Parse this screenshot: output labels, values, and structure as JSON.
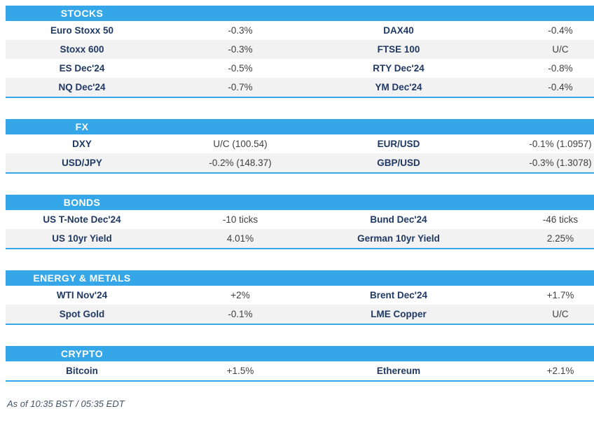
{
  "colors": {
    "accent": "#35a7e8",
    "stripe": "#f2f2f2",
    "label": "#1f3864",
    "value": "#3f3f3f",
    "header_text": "#ffffff",
    "footer": "#44546a"
  },
  "sections": [
    {
      "title": "STOCKS",
      "rows": [
        {
          "left": {
            "label": "Euro Stoxx 50",
            "value": "-0.3%"
          },
          "right": {
            "label": "DAX40",
            "value": "-0.4%"
          }
        },
        {
          "left": {
            "label": "Stoxx 600",
            "value": "-0.3%"
          },
          "right": {
            "label": "FTSE 100",
            "value": "U/C"
          }
        },
        {
          "left": {
            "label": "ES Dec'24",
            "value": "-0.5%"
          },
          "right": {
            "label": "RTY Dec'24",
            "value": "-0.8%"
          }
        },
        {
          "left": {
            "label": "NQ Dec'24",
            "value": "-0.7%"
          },
          "right": {
            "label": "YM Dec'24",
            "value": "-0.4%"
          }
        }
      ]
    },
    {
      "title": "FX",
      "rows": [
        {
          "left": {
            "label": "DXY",
            "value": "U/C (100.54)"
          },
          "right": {
            "label": "EUR/USD",
            "value": "-0.1% (1.0957)"
          }
        },
        {
          "left": {
            "label": "USD/JPY",
            "value": "-0.2% (148.37)"
          },
          "right": {
            "label": "GBP/USD",
            "value": "-0.3% (1.3078)"
          }
        }
      ]
    },
    {
      "title": "BONDS",
      "rows": [
        {
          "left": {
            "label": "US T-Note Dec'24",
            "value": "-10 ticks"
          },
          "right": {
            "label": "Bund Dec'24",
            "value": "-46 ticks"
          }
        },
        {
          "left": {
            "label": "US 10yr Yield",
            "value": "4.01%"
          },
          "right": {
            "label": "German 10yr Yield",
            "value": "2.25%"
          }
        }
      ]
    },
    {
      "title": "ENERGY & METALS",
      "rows": [
        {
          "left": {
            "label": "WTI Nov'24",
            "value": "+2%"
          },
          "right": {
            "label": "Brent Dec'24",
            "value": "+1.7%"
          }
        },
        {
          "left": {
            "label": "Spot Gold",
            "value": "-0.1%"
          },
          "right": {
            "label": "LME Copper",
            "value": "U/C"
          }
        }
      ]
    },
    {
      "title": "CRYPTO",
      "rows": [
        {
          "left": {
            "label": "Bitcoin",
            "value": "+1.5%"
          },
          "right": {
            "label": "Ethereum",
            "value": "+2.1%"
          }
        }
      ]
    }
  ],
  "footer": {
    "as_of": "As of 10:35 BST / 05:35 EDT"
  }
}
